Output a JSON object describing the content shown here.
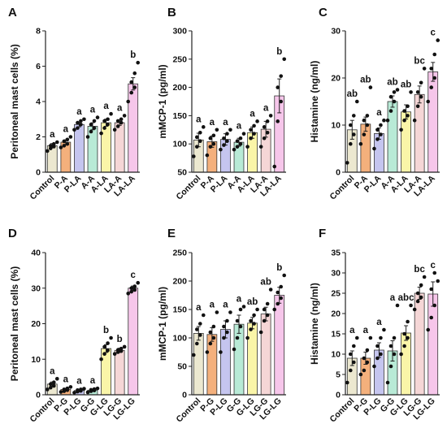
{
  "chart_data": [
    {
      "type": "bar",
      "panel": "A",
      "ylabel": "Peritoneal mast cells (%)",
      "ylim": [
        0,
        8
      ],
      "yticks": [
        0,
        2,
        4,
        6,
        8
      ],
      "categories": [
        "Control",
        "P-A",
        "P-LA",
        "A-A",
        "A-LA",
        "LA-A",
        "LA-LA"
      ],
      "colors": [
        "#ece8d0",
        "#f4b07c",
        "#c5c5ef",
        "#b8ead6",
        "#faf5a8",
        "#f5d6d6",
        "#f6c6ea"
      ],
      "values": [
        1.5,
        1.7,
        2.7,
        2.6,
        2.8,
        2.8,
        5.0
      ],
      "errors": [
        0.12,
        0.13,
        0.13,
        0.2,
        0.2,
        0.15,
        0.35
      ],
      "points": [
        [
          1.2,
          1.35,
          1.45,
          1.5,
          1.6,
          1.7
        ],
        [
          1.4,
          1.5,
          1.6,
          1.75,
          1.85,
          2.0
        ],
        [
          2.4,
          2.5,
          2.7,
          2.8,
          2.9,
          3.0
        ],
        [
          2.0,
          2.3,
          2.5,
          2.7,
          2.9,
          3.1
        ],
        [
          2.2,
          2.5,
          2.7,
          2.9,
          3.0,
          3.3
        ],
        [
          2.4,
          2.6,
          2.8,
          2.9,
          3.0,
          3.2
        ],
        [
          4.0,
          4.5,
          4.8,
          5.1,
          5.6,
          6.2
        ]
      ],
      "significance": [
        "a",
        "a",
        "a",
        "a",
        "a",
        "a",
        "b"
      ]
    },
    {
      "type": "bar",
      "panel": "B",
      "ylabel": "mMCP-1 (pg/ml)",
      "ylim": [
        50,
        300
      ],
      "yticks": [
        50,
        100,
        150,
        200,
        250,
        300
      ],
      "categories": [
        "Control",
        "P-A",
        "P-LA",
        "A-A",
        "A-LA",
        "LA-A",
        "LA-LA"
      ],
      "colors": [
        "#ece8d0",
        "#f4b07c",
        "#c5c5ef",
        "#b8ead6",
        "#faf5a8",
        "#f5d6d6",
        "#f6c6ea"
      ],
      "values": [
        107,
        104,
        108,
        103,
        120,
        126,
        185
      ],
      "errors": [
        12,
        10,
        10,
        7,
        10,
        14,
        30
      ],
      "points": [
        [
          78,
          95,
          105,
          112,
          120,
          130
        ],
        [
          80,
          95,
          100,
          110,
          115,
          125
        ],
        [
          90,
          98,
          105,
          110,
          118,
          125
        ],
        [
          90,
          95,
          100,
          105,
          110,
          118
        ],
        [
          95,
          110,
          118,
          125,
          132,
          140
        ],
        [
          95,
          110,
          120,
          130,
          140,
          150
        ],
        [
          60,
          140,
          175,
          200,
          220,
          250
        ]
      ],
      "significance": [
        "a",
        "a",
        "a",
        "a",
        "a",
        "a",
        "b"
      ]
    },
    {
      "type": "bar",
      "panel": "C",
      "ylabel": "Histamine (ng/ml)",
      "ylim": [
        0,
        30
      ],
      "yticks": [
        0,
        10,
        20,
        30
      ],
      "categories": [
        "Control",
        "P-A",
        "P-LA",
        "A-A",
        "A-LA",
        "LA-A",
        "LA-LA"
      ],
      "colors": [
        "#ece8d0",
        "#f4b07c",
        "#c5c5ef",
        "#b8ead6",
        "#faf5a8",
        "#f5d6d6",
        "#f6c6ea"
      ],
      "values": [
        9.0,
        10.2,
        8.2,
        15.0,
        12.8,
        16.5,
        21.3
      ],
      "errors": [
        2.0,
        1.5,
        1.2,
        1.2,
        1.5,
        1.8,
        2.0
      ],
      "points": [
        [
          2,
          6,
          8,
          10,
          12,
          15
        ],
        [
          6,
          8,
          10,
          11,
          12,
          18
        ],
        [
          5,
          7,
          8,
          9,
          10,
          11
        ],
        [
          11,
          13,
          15,
          16,
          17,
          17.5
        ],
        [
          9,
          11,
          12,
          13,
          14,
          17
        ],
        [
          11,
          14,
          16,
          17,
          19,
          22
        ],
        [
          15,
          18,
          20,
          22,
          25,
          28
        ]
      ],
      "significance": [
        "ab",
        "ab",
        "a",
        "ab",
        "ab",
        "bc",
        "c"
      ]
    },
    {
      "type": "bar",
      "panel": "D",
      "ylabel": "Peritoneal mast cells (%)",
      "ylim": [
        0,
        40
      ],
      "yticks": [
        0,
        10,
        20,
        30,
        40
      ],
      "categories": [
        "Control",
        "P-G",
        "P-LG",
        "G-G",
        "G-LG",
        "LG-G",
        "LG-LG"
      ],
      "colors": [
        "#ece8d0",
        "#f4b07c",
        "#c5c5ef",
        "#b8ead6",
        "#faf5a8",
        "#f5d6d6",
        "#f6c6ea"
      ],
      "values": [
        3.0,
        1.5,
        1.2,
        1.3,
        13.0,
        12.5,
        30.0
      ],
      "errors": [
        0.6,
        0.3,
        0.2,
        0.2,
        1.1,
        0.6,
        0.6
      ],
      "points": [
        [
          1.5,
          2.0,
          2.5,
          3.0,
          3.5,
          4.5
        ],
        [
          0.8,
          1.0,
          1.3,
          1.5,
          1.8,
          2.2
        ],
        [
          0.6,
          0.9,
          1.1,
          1.3,
          1.5,
          1.7
        ],
        [
          0.7,
          1.0,
          1.2,
          1.4,
          1.6,
          1.8
        ],
        [
          10,
          11.5,
          12.5,
          13.5,
          14.5,
          16
        ],
        [
          11.5,
          12,
          12.3,
          12.6,
          13,
          13.5
        ],
        [
          28.5,
          29,
          29.5,
          30,
          30.5,
          31.5
        ]
      ],
      "significance": [
        "a",
        "a",
        "a",
        "a",
        "b",
        "b",
        "c"
      ]
    },
    {
      "type": "bar",
      "panel": "E",
      "ylabel": "mMCP-1 (pg/ml)",
      "ylim": [
        0,
        250
      ],
      "yticks": [
        0,
        50,
        100,
        150,
        200,
        250
      ],
      "categories": [
        "Control",
        "P-G",
        "P-LG",
        "G-G",
        "G-LG",
        "LG-G",
        "LG-LG"
      ],
      "colors": [
        "#ece8d0",
        "#f4b07c",
        "#c5c5ef",
        "#b8ead6",
        "#faf5a8",
        "#f5d6d6",
        "#f6c6ea"
      ],
      "values": [
        108,
        106,
        115,
        124,
        126,
        142,
        175
      ],
      "errors": [
        12,
        12,
        15,
        16,
        10,
        12,
        14
      ],
      "points": [
        [
          70,
          90,
          105,
          115,
          125,
          140
        ],
        [
          75,
          90,
          100,
          110,
          120,
          145
        ],
        [
          75,
          100,
          110,
          120,
          130,
          145
        ],
        [
          80,
          100,
          120,
          130,
          150,
          155
        ],
        [
          100,
          115,
          125,
          130,
          140,
          150
        ],
        [
          110,
          130,
          140,
          150,
          160,
          185
        ],
        [
          150,
          160,
          170,
          180,
          190,
          210
        ]
      ],
      "significance": [
        "a",
        "a",
        "a",
        "a",
        "ab",
        "ab",
        "b"
      ]
    },
    {
      "type": "bar",
      "panel": "F",
      "ylabel": "Histamine (ng/ml)",
      "ylim": [
        0,
        35
      ],
      "yticks": [
        0,
        5,
        10,
        15,
        20,
        25,
        30,
        35
      ],
      "categories": [
        "Control",
        "P-G",
        "P-LG",
        "G-G",
        "G-LG",
        "LG-G",
        "LG-LG"
      ],
      "colors": [
        "#ece8d0",
        "#f4b07c",
        "#c5c5ef",
        "#b8ead6",
        "#faf5a8",
        "#f5d6d6",
        "#f6c6ea"
      ],
      "values": [
        9.0,
        9.0,
        11.0,
        10.8,
        15.2,
        25.0,
        24.8
      ],
      "errors": [
        1.8,
        1.5,
        1.8,
        2.5,
        1.8,
        1.5,
        3.0
      ],
      "points": [
        [
          3,
          6,
          8,
          10,
          12,
          14
        ],
        [
          5,
          6,
          8,
          9,
          11,
          14
        ],
        [
          7,
          9,
          10,
          12,
          14,
          16
        ],
        [
          3,
          7,
          10,
          12,
          14,
          22
        ],
        [
          10,
          12,
          14,
          15,
          18,
          22
        ],
        [
          21,
          23,
          24,
          25,
          27,
          29
        ],
        [
          16,
          19,
          22,
          26,
          30,
          28
        ]
      ],
      "significance": [
        "a",
        "a",
        "a",
        "a",
        "abc",
        "bc",
        "c"
      ]
    }
  ]
}
